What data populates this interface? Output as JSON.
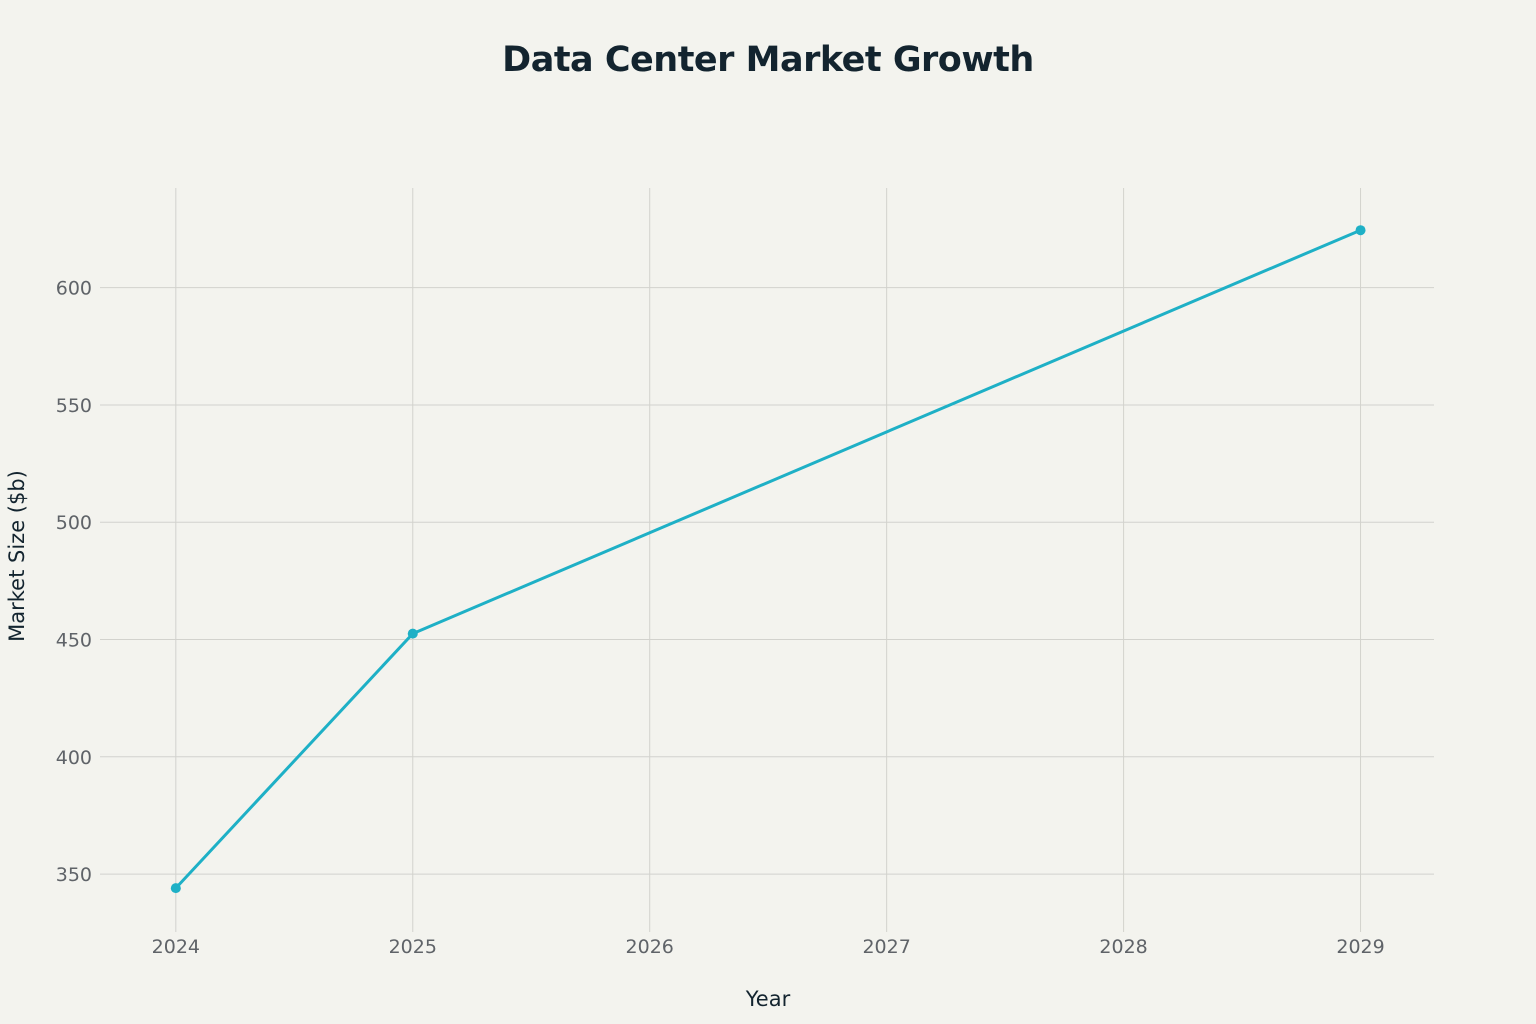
{
  "chart_data": {
    "type": "line",
    "title": "Data Center Market Growth",
    "xlabel": "Year",
    "ylabel": "Market Size ($b)",
    "x": [
      2024,
      2025,
      2029
    ],
    "series": [
      {
        "values": [
          344,
          452.5,
          624.5
        ],
        "color": "#1eb0c6"
      }
    ],
    "xticks": [
      2024,
      2025,
      2026,
      2027,
      2028,
      2029
    ],
    "yticks": [
      350,
      400,
      450,
      500,
      550,
      600
    ],
    "xlim": [
      2023.68,
      2029.31
    ],
    "ylim": [
      325.3,
      642.5
    ],
    "grid": true,
    "legend": "none"
  }
}
